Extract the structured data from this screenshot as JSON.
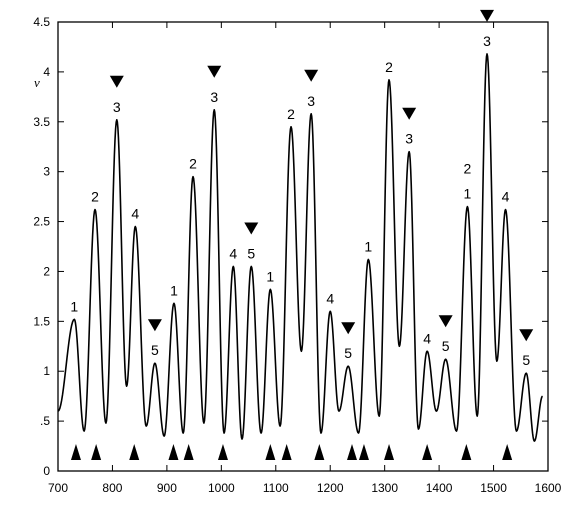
{
  "chart_data": {
    "type": "line",
    "title": "",
    "xlabel": "",
    "ylabel": "v",
    "xlim": [
      700,
      1600
    ],
    "ylim": [
      0,
      4.5
    ],
    "x_ticks": [
      700,
      800,
      900,
      1000,
      1100,
      1200,
      1300,
      1400,
      1500,
      1600
    ],
    "y_ticks": [
      {
        "value": 0,
        "label": "0"
      },
      {
        "value": 0.5,
        "label": ".5"
      },
      {
        "value": 1,
        "label": "1"
      },
      {
        "value": 1.5,
        "label": "1.5"
      },
      {
        "value": 2,
        "label": "2"
      },
      {
        "value": 2.5,
        "label": "2.5"
      },
      {
        "value": 3,
        "label": "3"
      },
      {
        "value": 3.5,
        "label": "3.5"
      },
      {
        "value": 4,
        "label": "4"
      },
      {
        "value": 4.5,
        "label": "4.5"
      }
    ],
    "grid": false,
    "series": [
      {
        "peaks": [
          {
            "x": 730,
            "y": 1.52
          },
          {
            "x": 768,
            "y": 2.62
          },
          {
            "x": 808,
            "y": 3.52
          },
          {
            "x": 842,
            "y": 2.45
          },
          {
            "x": 878,
            "y": 1.08
          },
          {
            "x": 913,
            "y": 1.68
          },
          {
            "x": 948,
            "y": 2.95
          },
          {
            "x": 987,
            "y": 3.62
          },
          {
            "x": 1022,
            "y": 2.05
          },
          {
            "x": 1055,
            "y": 2.05
          },
          {
            "x": 1090,
            "y": 1.82
          },
          {
            "x": 1128,
            "y": 3.45
          },
          {
            "x": 1165,
            "y": 3.58
          },
          {
            "x": 1200,
            "y": 1.6
          },
          {
            "x": 1233,
            "y": 1.05
          },
          {
            "x": 1270,
            "y": 2.12
          },
          {
            "x": 1308,
            "y": 3.92
          },
          {
            "x": 1345,
            "y": 3.2
          },
          {
            "x": 1378,
            "y": 1.2
          },
          {
            "x": 1412,
            "y": 1.12
          },
          {
            "x": 1452,
            "y": 2.65
          },
          {
            "x": 1488,
            "y": 4.18
          },
          {
            "x": 1522,
            "y": 2.62
          },
          {
            "x": 1560,
            "y": 0.98
          }
        ],
        "valleys": [
          {
            "x": 700,
            "y": 0.6
          },
          {
            "x": 748,
            "y": 0.4
          },
          {
            "x": 788,
            "y": 0.48
          },
          {
            "x": 826,
            "y": 0.85
          },
          {
            "x": 862,
            "y": 0.45
          },
          {
            "x": 895,
            "y": 0.35
          },
          {
            "x": 930,
            "y": 0.38
          },
          {
            "x": 968,
            "y": 0.48
          },
          {
            "x": 1005,
            "y": 0.38
          },
          {
            "x": 1038,
            "y": 0.32
          },
          {
            "x": 1073,
            "y": 0.38
          },
          {
            "x": 1108,
            "y": 0.45
          },
          {
            "x": 1147,
            "y": 1.2
          },
          {
            "x": 1183,
            "y": 0.38
          },
          {
            "x": 1216,
            "y": 0.6
          },
          {
            "x": 1252,
            "y": 0.38
          },
          {
            "x": 1290,
            "y": 0.55
          },
          {
            "x": 1327,
            "y": 1.25
          },
          {
            "x": 1362,
            "y": 0.42
          },
          {
            "x": 1395,
            "y": 0.6
          },
          {
            "x": 1432,
            "y": 0.4
          },
          {
            "x": 1470,
            "y": 0.55
          },
          {
            "x": 1506,
            "y": 1.1
          },
          {
            "x": 1542,
            "y": 0.4
          },
          {
            "x": 1575,
            "y": 0.3
          },
          {
            "x": 1590,
            "y": 0.75
          }
        ]
      }
    ],
    "peak_labels": [
      {
        "x": 730,
        "y": 1.52,
        "text": "1"
      },
      {
        "x": 768,
        "y": 2.62,
        "text": "2"
      },
      {
        "x": 808,
        "y": 3.52,
        "text": "3"
      },
      {
        "x": 842,
        "y": 2.45,
        "text": "4"
      },
      {
        "x": 878,
        "y": 1.08,
        "text": "5"
      },
      {
        "x": 913,
        "y": 1.68,
        "text": "1"
      },
      {
        "x": 948,
        "y": 2.95,
        "text": "2"
      },
      {
        "x": 987,
        "y": 3.62,
        "text": "3"
      },
      {
        "x": 1022,
        "y": 2.05,
        "text": "4"
      },
      {
        "x": 1055,
        "y": 2.05,
        "text": "5"
      },
      {
        "x": 1090,
        "y": 1.82,
        "text": "1"
      },
      {
        "x": 1128,
        "y": 3.45,
        "text": "2"
      },
      {
        "x": 1165,
        "y": 3.58,
        "text": "3"
      },
      {
        "x": 1200,
        "y": 1.6,
        "text": "4"
      },
      {
        "x": 1233,
        "y": 1.05,
        "text": "5"
      },
      {
        "x": 1270,
        "y": 2.12,
        "text": "1"
      },
      {
        "x": 1308,
        "y": 3.92,
        "text": "2"
      },
      {
        "x": 1345,
        "y": 3.2,
        "text": "3"
      },
      {
        "x": 1378,
        "y": 1.2,
        "text": "4"
      },
      {
        "x": 1412,
        "y": 1.12,
        "text": "5"
      },
      {
        "x": 1452,
        "y": 2.65,
        "text": "1"
      },
      {
        "x": 1452,
        "y": 2.9,
        "text": "2"
      },
      {
        "x": 1488,
        "y": 4.18,
        "text": "3"
      },
      {
        "x": 1522,
        "y": 2.62,
        "text": "4"
      },
      {
        "x": 1560,
        "y": 0.98,
        "text": "5"
      }
    ],
    "down_markers": [
      {
        "x": 808,
        "y": 3.52
      },
      {
        "x": 878,
        "y": 1.08
      },
      {
        "x": 987,
        "y": 3.62
      },
      {
        "x": 1055,
        "y": 2.05
      },
      {
        "x": 1165,
        "y": 3.58
      },
      {
        "x": 1233,
        "y": 1.05
      },
      {
        "x": 1345,
        "y": 3.2
      },
      {
        "x": 1412,
        "y": 1.12
      },
      {
        "x": 1488,
        "y": 4.18
      },
      {
        "x": 1560,
        "y": 0.98
      }
    ],
    "up_markers_x": [
      733,
      770,
      840,
      912,
      940,
      1003,
      1090,
      1120,
      1180,
      1240,
      1262,
      1308,
      1378,
      1450,
      1525
    ]
  }
}
